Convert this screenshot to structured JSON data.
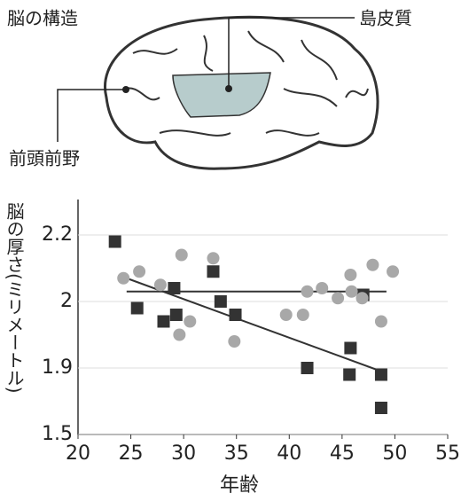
{
  "diagram": {
    "title": "脳の構造",
    "labels": [
      "島皮質",
      "前頭前野"
    ]
  },
  "chart_data": {
    "type": "scatter",
    "y_label": "脳の厚さ(ミリメートル)",
    "x_label": "年齢",
    "xlim": [
      20,
      55
    ],
    "xticks": [
      20,
      25,
      30,
      35,
      40,
      45,
      50,
      55
    ],
    "ylim": [
      1.5,
      2.3
    ],
    "yticks": [
      1.5,
      1.9,
      2.0,
      2.2
    ],
    "grid": true,
    "series": [
      {
        "color": "#333333",
        "marker": "square",
        "x": [
          23.5,
          25.6,
          29.1,
          28.1,
          29.3,
          32.8,
          33.5,
          34.9,
          41.7,
          45.8,
          45.7,
          47.0,
          48.7,
          48.7
        ],
        "values": [
          2.18,
          1.99,
          2.04,
          1.97,
          1.98,
          2.09,
          2.0,
          1.98,
          1.9,
          1.93,
          1.86,
          2.02,
          1.86,
          1.66
        ]
      },
      {
        "color": "#a8a8a8",
        "marker": "circle",
        "x": [
          24.3,
          25.8,
          27.8,
          29.8,
          30.6,
          29.6,
          32.8,
          34.8,
          39.7,
          41.3,
          41.7,
          43.1,
          44.6,
          45.9,
          45.8,
          46.9,
          47.9,
          48.7,
          49.8
        ],
        "values": [
          2.07,
          2.09,
          2.05,
          2.14,
          1.97,
          1.95,
          2.13,
          1.94,
          1.98,
          1.98,
          2.03,
          2.04,
          2.01,
          2.03,
          2.08,
          2.01,
          2.11,
          1.97,
          2.09
        ]
      }
    ],
    "trend_lines": [
      {
        "color": "#333333",
        "x": [
          24.6,
          49.2
        ],
        "values": [
          2.03,
          2.03
        ]
      },
      {
        "color": "#333333",
        "x": [
          24.6,
          48.7
        ],
        "values": [
          2.07,
          1.88
        ]
      }
    ]
  }
}
